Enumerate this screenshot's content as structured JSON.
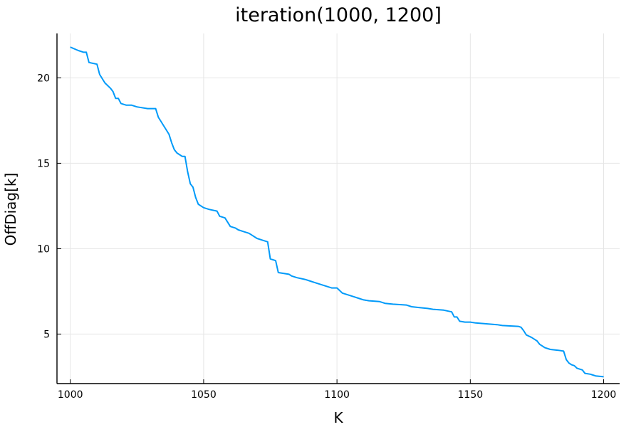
{
  "chart_data": {
    "type": "line",
    "title": "iteration(1000, 1200]",
    "xlabel": "K",
    "ylabel": "OffDiag[k]",
    "xlim": [
      995,
      1206
    ],
    "ylim": [
      2.1,
      22.6
    ],
    "xticks": [
      1000,
      1050,
      1100,
      1150,
      1200
    ],
    "yticks": [
      5,
      10,
      15,
      20
    ],
    "grid": true,
    "legend": "none",
    "series": [
      {
        "color": "#009af9",
        "points": [
          [
            1000,
            21.8
          ],
          [
            1003,
            21.6
          ],
          [
            1005,
            21.5
          ],
          [
            1006,
            21.5
          ],
          [
            1007,
            20.9
          ],
          [
            1010,
            20.8
          ],
          [
            1011,
            20.2
          ],
          [
            1013,
            19.7
          ],
          [
            1015,
            19.4
          ],
          [
            1016,
            19.2
          ],
          [
            1017,
            18.8
          ],
          [
            1018,
            18.8
          ],
          [
            1019,
            18.5
          ],
          [
            1021,
            18.4
          ],
          [
            1023,
            18.4
          ],
          [
            1025,
            18.3
          ],
          [
            1029,
            18.2
          ],
          [
            1032,
            18.2
          ],
          [
            1033,
            17.7
          ],
          [
            1035,
            17.2
          ],
          [
            1037,
            16.7
          ],
          [
            1038,
            16.2
          ],
          [
            1039,
            15.8
          ],
          [
            1040,
            15.6
          ],
          [
            1042,
            15.4
          ],
          [
            1043,
            15.4
          ],
          [
            1044,
            14.5
          ],
          [
            1045,
            13.8
          ],
          [
            1046,
            13.6
          ],
          [
            1047,
            13.0
          ],
          [
            1048,
            12.6
          ],
          [
            1050,
            12.4
          ],
          [
            1052,
            12.3
          ],
          [
            1055,
            12.2
          ],
          [
            1056,
            11.9
          ],
          [
            1058,
            11.8
          ],
          [
            1060,
            11.3
          ],
          [
            1062,
            11.2
          ],
          [
            1063,
            11.1
          ],
          [
            1065,
            11.0
          ],
          [
            1067,
            10.9
          ],
          [
            1068,
            10.8
          ],
          [
            1070,
            10.6
          ],
          [
            1072,
            10.5
          ],
          [
            1074,
            10.4
          ],
          [
            1075,
            9.4
          ],
          [
            1077,
            9.3
          ],
          [
            1078,
            8.6
          ],
          [
            1082,
            8.5
          ],
          [
            1083,
            8.4
          ],
          [
            1085,
            8.3
          ],
          [
            1088,
            8.2
          ],
          [
            1090,
            8.1
          ],
          [
            1092,
            8.0
          ],
          [
            1094,
            7.9
          ],
          [
            1096,
            7.8
          ],
          [
            1098,
            7.7
          ],
          [
            1100,
            7.7
          ],
          [
            1102,
            7.4
          ],
          [
            1104,
            7.3
          ],
          [
            1106,
            7.2
          ],
          [
            1108,
            7.1
          ],
          [
            1110,
            7.0
          ],
          [
            1112,
            6.95
          ],
          [
            1116,
            6.9
          ],
          [
            1118,
            6.8
          ],
          [
            1121,
            6.75
          ],
          [
            1126,
            6.7
          ],
          [
            1128,
            6.6
          ],
          [
            1131,
            6.55
          ],
          [
            1134,
            6.5
          ],
          [
            1136,
            6.45
          ],
          [
            1140,
            6.4
          ],
          [
            1143,
            6.3
          ],
          [
            1144,
            6.0
          ],
          [
            1145,
            6.0
          ],
          [
            1146,
            5.75
          ],
          [
            1148,
            5.7
          ],
          [
            1150,
            5.7
          ],
          [
            1152,
            5.65
          ],
          [
            1156,
            5.6
          ],
          [
            1160,
            5.55
          ],
          [
            1162,
            5.5
          ],
          [
            1168,
            5.45
          ],
          [
            1169,
            5.4
          ],
          [
            1170,
            5.2
          ],
          [
            1171,
            4.95
          ],
          [
            1173,
            4.8
          ],
          [
            1175,
            4.6
          ],
          [
            1176,
            4.4
          ],
          [
            1178,
            4.2
          ],
          [
            1180,
            4.1
          ],
          [
            1183,
            4.05
          ],
          [
            1185,
            4.0
          ],
          [
            1186,
            3.5
          ],
          [
            1187,
            3.3
          ],
          [
            1188,
            3.2
          ],
          [
            1189,
            3.15
          ],
          [
            1190,
            3.0
          ],
          [
            1192,
            2.9
          ],
          [
            1193,
            2.7
          ],
          [
            1195,
            2.65
          ],
          [
            1196,
            2.6
          ],
          [
            1197,
            2.55
          ],
          [
            1200,
            2.5
          ]
        ]
      }
    ]
  }
}
